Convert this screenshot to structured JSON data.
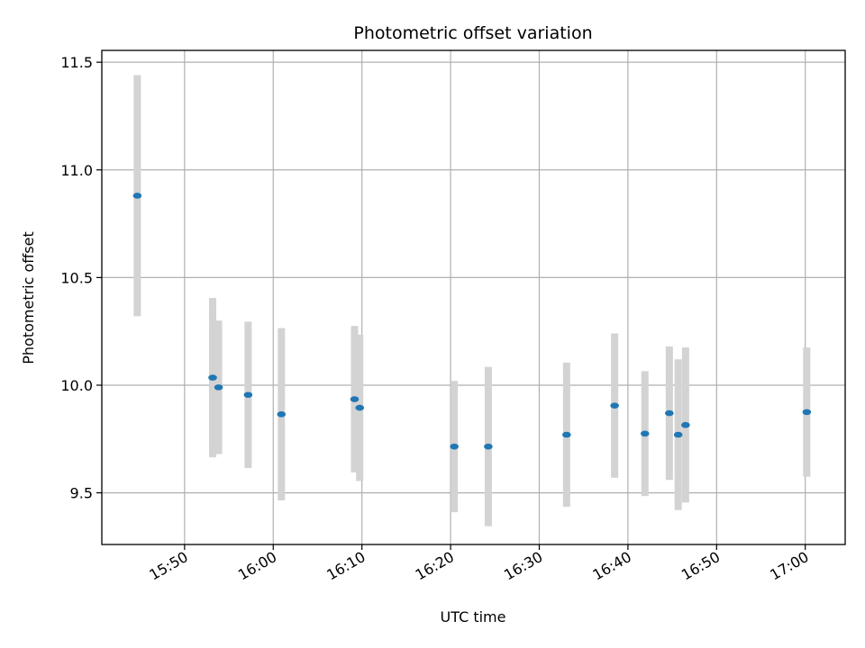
{
  "chart_data": {
    "type": "scatter",
    "title": "Photometric offset variation",
    "xlabel": "UTC time",
    "ylabel": "Photometric offset",
    "x_axis_type": "time",
    "xlim": [
      "15:40:40",
      "17:04:30"
    ],
    "ylim": [
      9.26,
      11.555
    ],
    "xticks": [
      "15:50",
      "16:00",
      "16:10",
      "16:20",
      "16:30",
      "16:40",
      "16:50",
      "17:00"
    ],
    "yticks": [
      9.5,
      10.0,
      10.5,
      11.0,
      11.5
    ],
    "ytick_labels": [
      "9.5",
      "10.0",
      "10.5",
      "11.0",
      "11.5"
    ],
    "grid": true,
    "errorbar_color": "#d3d3d3",
    "marker_color": "#1f77b4",
    "points": [
      {
        "time": "15:44:40",
        "y": 10.88,
        "err": 0.56
      },
      {
        "time": "15:53:10",
        "y": 10.035,
        "err": 0.37
      },
      {
        "time": "15:53:50",
        "y": 9.99,
        "err": 0.31
      },
      {
        "time": "15:57:10",
        "y": 9.955,
        "err": 0.34
      },
      {
        "time": "16:00:55",
        "y": 9.865,
        "err": 0.4
      },
      {
        "time": "16:09:10",
        "y": 9.935,
        "err": 0.34
      },
      {
        "time": "16:09:45",
        "y": 9.895,
        "err": 0.34
      },
      {
        "time": "16:20:25",
        "y": 9.715,
        "err": 0.305
      },
      {
        "time": "16:24:15",
        "y": 9.715,
        "err": 0.37
      },
      {
        "time": "16:33:05",
        "y": 9.77,
        "err": 0.335
      },
      {
        "time": "16:38:30",
        "y": 9.905,
        "err": 0.335
      },
      {
        "time": "16:41:55",
        "y": 9.775,
        "err": 0.29
      },
      {
        "time": "16:44:40",
        "y": 9.87,
        "err": 0.31
      },
      {
        "time": "16:45:40",
        "y": 9.77,
        "err": 0.35
      },
      {
        "time": "16:46:30",
        "y": 9.815,
        "err": 0.36
      },
      {
        "time": "17:00:10",
        "y": 9.875,
        "err": 0.3
      }
    ]
  }
}
